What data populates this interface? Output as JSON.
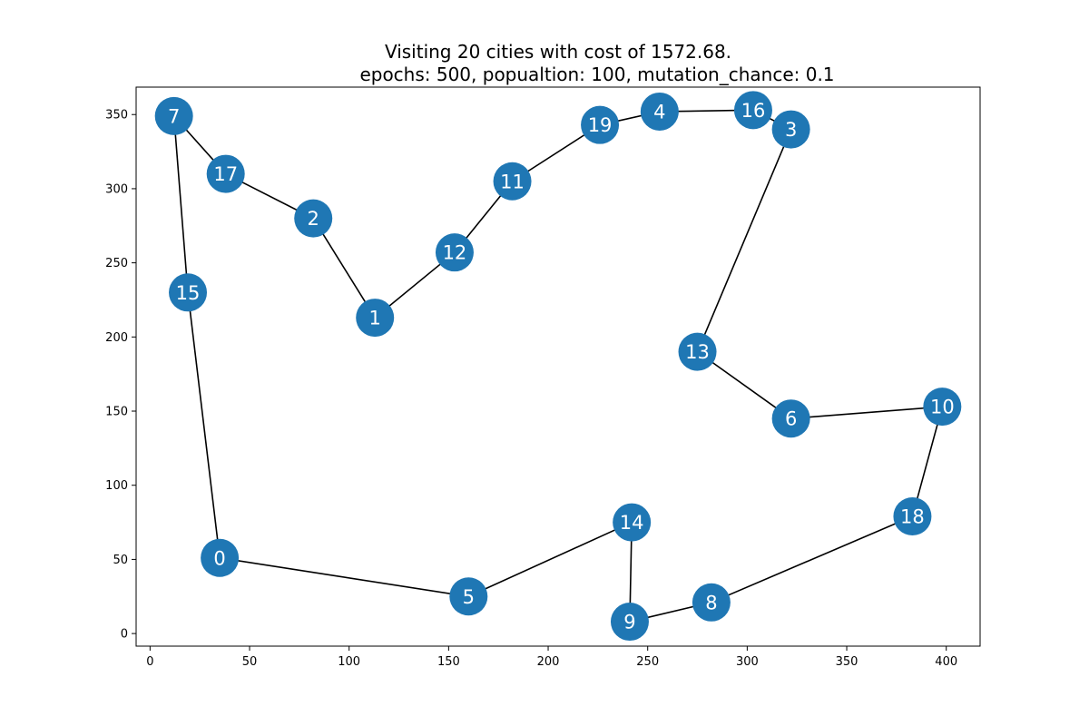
{
  "chart_data": {
    "type": "scatter",
    "title_line1": "Visiting 20 cities with cost of 1572.68.",
    "title_line2": "epochs: 500, popualtion: 100, mutation_chance: 0.1",
    "xlim": [
      -7,
      417
    ],
    "ylim": [
      -8.5,
      368.5
    ],
    "xticks": [
      0,
      50,
      100,
      150,
      200,
      250,
      300,
      350,
      400
    ],
    "yticks": [
      0,
      50,
      100,
      150,
      200,
      250,
      300,
      350
    ],
    "grid": false,
    "point_color": "#1f77b4",
    "edge_color": "#000000",
    "label_color": "#ffffff",
    "cities": [
      {
        "id": "0",
        "x": 35,
        "y": 51
      },
      {
        "id": "1",
        "x": 113,
        "y": 213
      },
      {
        "id": "2",
        "x": 82,
        "y": 280
      },
      {
        "id": "3",
        "x": 322,
        "y": 340
      },
      {
        "id": "4",
        "x": 256,
        "y": 352
      },
      {
        "id": "5",
        "x": 160,
        "y": 25
      },
      {
        "id": "6",
        "x": 322,
        "y": 145
      },
      {
        "id": "7",
        "x": 12,
        "y": 349
      },
      {
        "id": "8",
        "x": 282,
        "y": 21
      },
      {
        "id": "9",
        "x": 241,
        "y": 8
      },
      {
        "id": "10",
        "x": 398,
        "y": 153
      },
      {
        "id": "11",
        "x": 182,
        "y": 305
      },
      {
        "id": "12",
        "x": 153,
        "y": 257
      },
      {
        "id": "13",
        "x": 275,
        "y": 190
      },
      {
        "id": "14",
        "x": 242,
        "y": 75
      },
      {
        "id": "15",
        "x": 19,
        "y": 230
      },
      {
        "id": "16",
        "x": 303,
        "y": 353
      },
      {
        "id": "17",
        "x": 38,
        "y": 310
      },
      {
        "id": "18",
        "x": 383,
        "y": 79
      },
      {
        "id": "19",
        "x": 226,
        "y": 343
      }
    ],
    "route": [
      "0",
      "5",
      "14",
      "9",
      "8",
      "18",
      "10",
      "6",
      "13",
      "3",
      "16",
      "4",
      "19",
      "11",
      "12",
      "1",
      "2",
      "17",
      "7",
      "15",
      "0"
    ]
  }
}
